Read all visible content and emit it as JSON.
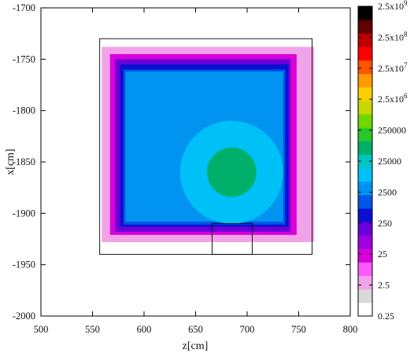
{
  "chart_data": {
    "type": "heatmap",
    "title": "",
    "xlabel": "z[cm]",
    "ylabel": "x[cm]",
    "xlim": [
      500,
      800
    ],
    "ylim": [
      -2000,
      -1700
    ],
    "xticks": [
      "500",
      "550",
      "600",
      "650",
      "700",
      "750",
      "800"
    ],
    "yticks": [
      "-1700",
      "-1750",
      "-1800",
      "-1850",
      "-1900",
      "-1950",
      "-2000"
    ],
    "xtick_values": [
      500,
      550,
      600,
      650,
      700,
      750,
      800
    ],
    "ytick_values": [
      -1700,
      -1750,
      -1800,
      -1850,
      -1900,
      -1950,
      -2000
    ],
    "colorbar": {
      "scale": "log",
      "range": [
        0.25,
        2500000000
      ],
      "tick_labels": [
        {
          "value": 0.25,
          "label": "0.25"
        },
        {
          "value": 2.5,
          "label": "2.5"
        },
        {
          "value": 25,
          "label": "25"
        },
        {
          "value": 250,
          "label": "250"
        },
        {
          "value": 2500,
          "label": "2500"
        },
        {
          "value": 25000,
          "label": "25000"
        },
        {
          "value": 250000,
          "label": "250000"
        },
        {
          "value": 2500000,
          "label": "2.5x10",
          "exp": "6"
        },
        {
          "value": 25000000,
          "label": "2.5x10",
          "exp": "7"
        },
        {
          "value": 250000000,
          "label": "2.5x10",
          "exp": "8"
        },
        {
          "value": 2500000000,
          "label": "2.5x10",
          "exp": "9"
        }
      ],
      "colors": [
        "#ffffff",
        "#d9d9d9",
        "#f2a2e8",
        "#ff5aff",
        "#d900d9",
        "#a000e0",
        "#6a00d9",
        "#0a10d2",
        "#0056e6",
        "#0094f0",
        "#00c0f8",
        "#00c5c5",
        "#00b06a",
        "#28c828",
        "#70d600",
        "#c5d800",
        "#ffd000",
        "#ff9a00",
        "#ff5500",
        "#ff0000",
        "#c00000",
        "#600000",
        "#000000"
      ]
    },
    "regions": [
      {
        "name": "halo-outer",
        "z": [
          548,
          772
        ],
        "x": [
          -1733,
          -1937
        ],
        "value": 0.5
      },
      {
        "name": "halo-pink",
        "z": [
          559,
          765
        ],
        "x": [
          -1738,
          -1928
        ],
        "value": 4
      },
      {
        "name": "halo-magenta",
        "z": [
          567,
          748
        ],
        "x": [
          -1745,
          -1921
        ],
        "value": 25
      },
      {
        "name": "shell-purple",
        "z": [
          572,
          742
        ],
        "x": [
          -1750,
          -1918
        ],
        "value": 120
      },
      {
        "name": "shell-blue",
        "z": [
          577,
          740
        ],
        "x": [
          -1755,
          -1913
        ],
        "value": 600
      },
      {
        "name": "shell-midblue",
        "z": [
          580,
          737
        ],
        "x": [
          -1760,
          -1911
        ],
        "value": 1500
      },
      {
        "name": "interior-sky",
        "z": [
          582,
          735
        ],
        "x": [
          -1762,
          -1908
        ],
        "value": 3500
      },
      {
        "name": "core-teal",
        "center": [
          685,
          -1860
        ],
        "radius": 50,
        "value": 12000
      },
      {
        "name": "core-green",
        "center": [
          685,
          -1860
        ],
        "radius": 24,
        "value": 50000
      }
    ],
    "overlay_boxes": [
      {
        "name": "outer-frame",
        "z": [
          557,
          763
        ],
        "x": [
          -1730,
          -1940
        ]
      },
      {
        "name": "chute",
        "z": [
          666,
          705
        ],
        "x": [
          -1910,
          -1940
        ]
      }
    ]
  }
}
